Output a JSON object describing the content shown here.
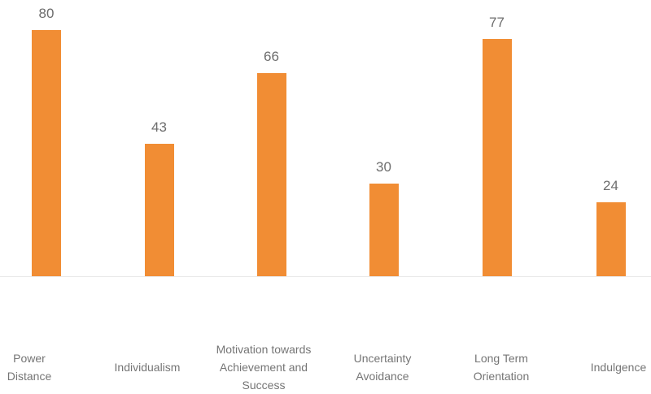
{
  "chart_data": {
    "type": "bar",
    "categories": [
      "Power Distance",
      "Individualism",
      "Motivation towards Achievement and Success",
      "Uncertainty Avoidance",
      "Long Term Orientation",
      "Indulgence"
    ],
    "categories_wrapped": [
      [
        "Power",
        "Distance"
      ],
      [
        "Individualism"
      ],
      [
        "Motivation towards",
        "Achievement and",
        "Success"
      ],
      [
        "Uncertainty",
        "Avoidance"
      ],
      [
        "Long Term",
        "Orientation"
      ],
      [
        "Indulgence"
      ]
    ],
    "values": [
      80,
      43,
      66,
      30,
      77,
      24
    ],
    "title": "",
    "xlabel": "",
    "ylabel": "",
    "grid": false,
    "legend": false,
    "bar_color": "#F18D34",
    "value_label_color": "#6D6D6D",
    "category_label_color": "#757575",
    "axis_line_color": "#E9E9E9",
    "background_color": "#FFFFFF"
  }
}
